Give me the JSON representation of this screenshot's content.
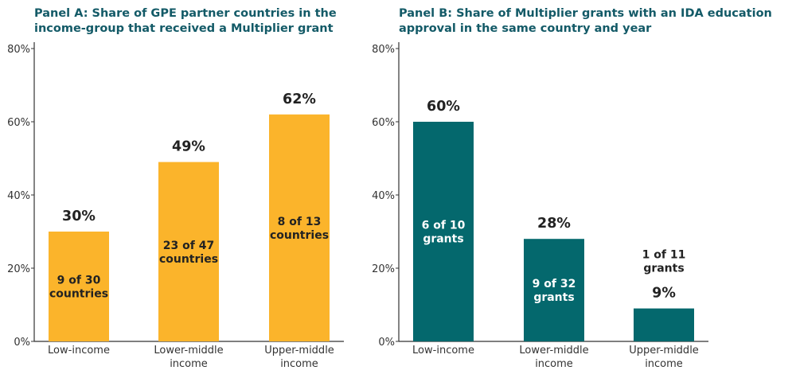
{
  "chart_data": [
    {
      "type": "bar",
      "title": "Panel A: Share of GPE partner countries in the income-group that received a Multiplier grant",
      "title_lines": [
        "Panel A: Share of GPE partner countries in the",
        "income-group that received a Multiplier grant"
      ],
      "categories": [
        "Low-income",
        "Lower-middle income",
        "Upper-middle income"
      ],
      "category_lines": [
        [
          "Low-income"
        ],
        [
          "Lower-middle",
          "income"
        ],
        [
          "Upper-middle",
          "income"
        ]
      ],
      "values": [
        30,
        49,
        62
      ],
      "value_labels": [
        "30%",
        "49%",
        "62%"
      ],
      "count_labels": [
        [
          "9 of 30",
          "countries"
        ],
        [
          "23 of 47",
          "countries"
        ],
        [
          "8 of 13",
          "countries"
        ]
      ],
      "count_label_position": "inside",
      "ylim": [
        0,
        80
      ],
      "yticks": [
        0,
        20,
        40,
        60,
        80
      ],
      "ytick_labels": [
        "0%",
        "20%",
        "40%",
        "60%",
        "80%"
      ],
      "bar_color": "#fbb42b",
      "inside_text_color": "#222222",
      "grid": false,
      "legend": "none"
    },
    {
      "type": "bar",
      "title": "Panel B: Share of Multiplier grants with an IDA education approval in the same country and year",
      "title_lines": [
        "Panel B: Share of Multiplier grants with an IDA education",
        "approval in the same country and year"
      ],
      "categories": [
        "Low-income",
        "Lower-middle income",
        "Upper-middle income"
      ],
      "category_lines": [
        [
          "Low-income"
        ],
        [
          "Lower-middle",
          "income"
        ],
        [
          "Upper-middle",
          "income"
        ]
      ],
      "values": [
        60,
        28,
        9
      ],
      "value_labels": [
        "60%",
        "28%",
        "9%"
      ],
      "count_labels": [
        [
          "6 of 10",
          "grants"
        ],
        [
          "9 of 32",
          "grants"
        ],
        [
          "1 of 11",
          "grants"
        ]
      ],
      "count_label_position": "inside except last (above)",
      "ylim": [
        0,
        80
      ],
      "yticks": [
        0,
        20,
        40,
        60,
        80
      ],
      "ytick_labels": [
        "0%",
        "20%",
        "40%",
        "60%",
        "80%"
      ],
      "bar_color": "#04686d",
      "inside_text_color": "#ffffff",
      "grid": false,
      "legend": "none"
    }
  ]
}
